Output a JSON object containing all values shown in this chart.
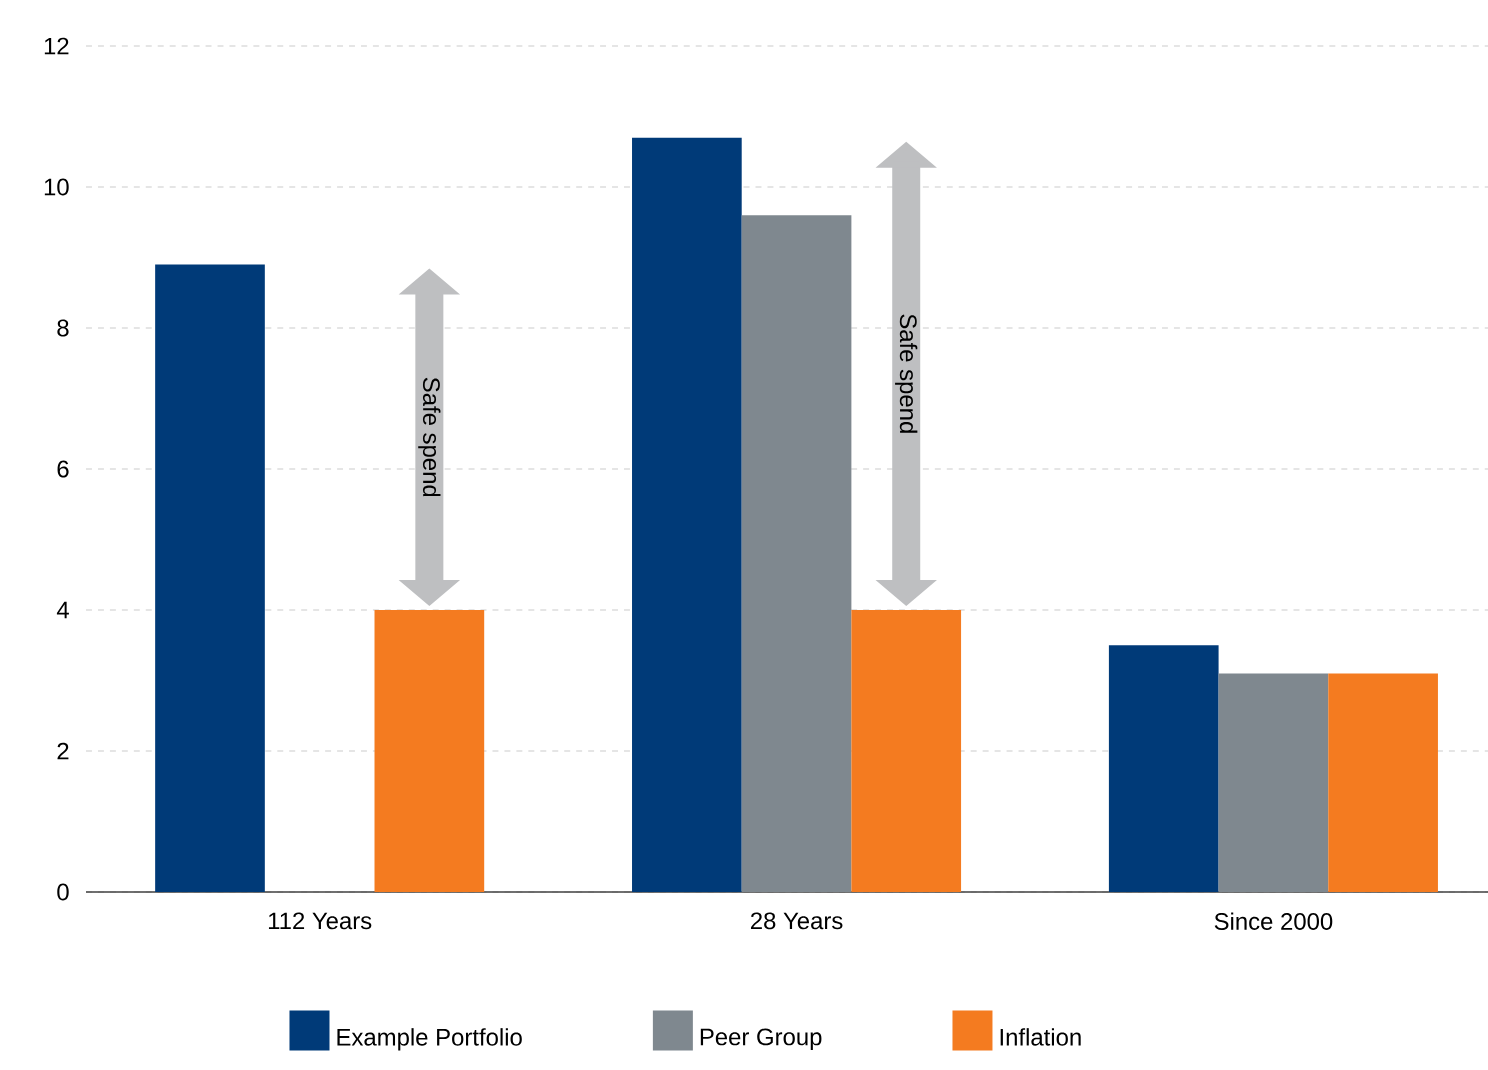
{
  "chart_data": {
    "type": "bar",
    "categories": [
      "112 Years",
      "28 Years",
      "Since 2000"
    ],
    "series": [
      {
        "name": "Example Portfolio",
        "color": "#003a78",
        "values": [
          8.9,
          10.7,
          3.5
        ]
      },
      {
        "name": "Peer Group",
        "color": "#7f888f",
        "values": [
          null,
          9.6,
          3.1
        ]
      },
      {
        "name": "Inflation",
        "color": "#f47b20",
        "values": [
          4.0,
          4.0,
          3.1
        ]
      }
    ],
    "ylim": [
      0,
      12
    ],
    "yticks": [
      0,
      2,
      4,
      6,
      8,
      10,
      12
    ],
    "grid": "y",
    "legend": "bottom",
    "annotations": [
      "Safe spend",
      "Safe spend"
    ]
  }
}
